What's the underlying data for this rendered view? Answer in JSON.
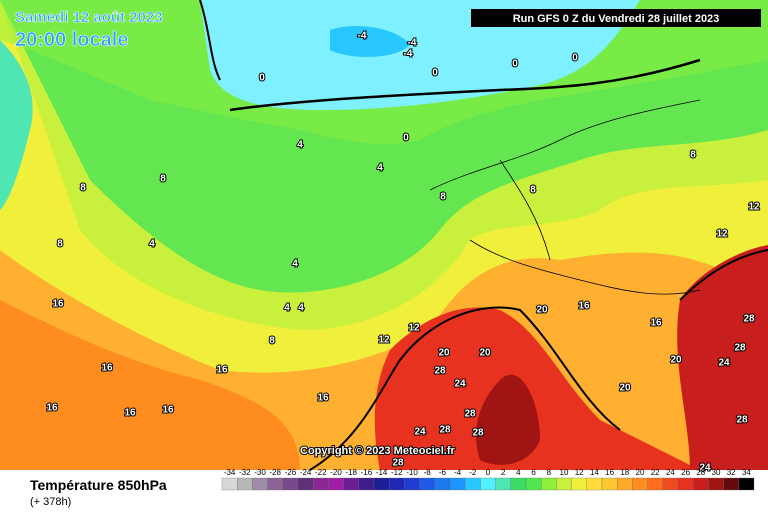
{
  "header": {
    "date": "Samedi 12 août 2023",
    "time": "20:00 locale",
    "run": "Run GFS 0 Z du Vendredi 28 juillet 2023"
  },
  "copyright": "Copyright © 2023 Meteociel.fr",
  "field": {
    "name": "Température 850hPa",
    "lead": "(+ 378h)"
  },
  "scale": {
    "values": [
      -34,
      -32,
      -30,
      -28,
      -26,
      -24,
      -22,
      -20,
      -18,
      -16,
      -14,
      -12,
      -10,
      -8,
      -6,
      -4,
      -2,
      0,
      2,
      4,
      6,
      8,
      10,
      12,
      14,
      16,
      18,
      20,
      22,
      24,
      26,
      28,
      30,
      32,
      34
    ],
    "colors": [
      "#d8d8d8",
      "#b8b8b8",
      "#a08ca8",
      "#8c6496",
      "#784a8c",
      "#603078",
      "#8c2896",
      "#a01ea8",
      "#6a1e96",
      "#3c1e8c",
      "#1e1e96",
      "#1e28b4",
      "#1e3cd2",
      "#1e5ae6",
      "#1e78f0",
      "#1e96ff",
      "#28c8ff",
      "#50f0ff",
      "#50e6b4",
      "#3cdc64",
      "#50e650",
      "#8cf03c",
      "#c8f03c",
      "#f0f03c",
      "#ffdc3c",
      "#ffc832",
      "#ffaa28",
      "#ff8c1e",
      "#ff6e1e",
      "#f04b1e",
      "#e6321e",
      "#c81e1e",
      "#a01414",
      "#640a0a",
      "#000000"
    ]
  },
  "contour_labels": [
    -4,
    -4,
    -4,
    0,
    0,
    0,
    0,
    0,
    4,
    4,
    4,
    4,
    4,
    4,
    8,
    8,
    8,
    8,
    8,
    8,
    8,
    12,
    12,
    12,
    12,
    16,
    16,
    16,
    16,
    16,
    16,
    16,
    16,
    16,
    20,
    20,
    20,
    20,
    20,
    24,
    24,
    24,
    28,
    28,
    28,
    28,
    28,
    28,
    28,
    24,
    28
  ]
}
